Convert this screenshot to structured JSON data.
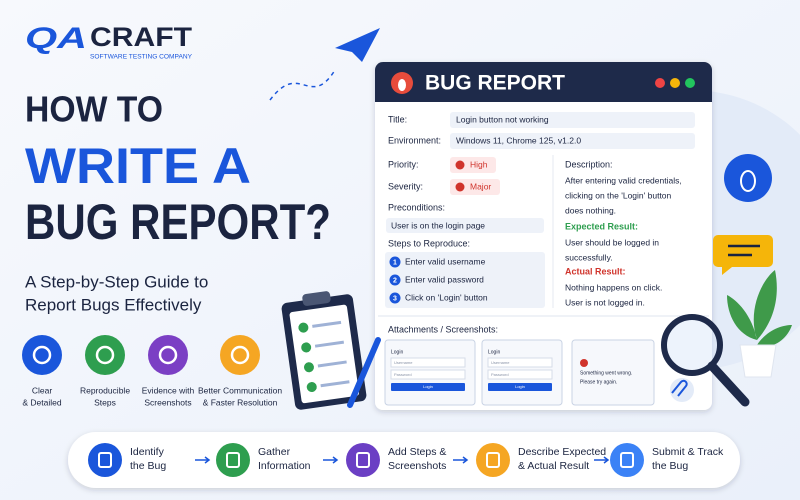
{
  "logo": {
    "mark": "QA",
    "name": "CRAFT",
    "tagline": "SOFTWARE TESTING COMPANY"
  },
  "headline": {
    "lines": [
      "HOW TO",
      "WRITE A",
      "BUG REPORT?"
    ]
  },
  "subtitle": {
    "lines": [
      "A Step-by-Step Guide to",
      "Report Bugs Effectively"
    ]
  },
  "features": [
    {
      "lines": [
        "Clear",
        "& Detailed"
      ]
    },
    {
      "lines": [
        "Reproducible",
        "Steps"
      ]
    },
    {
      "lines": [
        "Evidence with",
        "Screenshots"
      ]
    },
    {
      "lines": [
        "Better Communication",
        "& Faster Resolution"
      ]
    }
  ],
  "bug_report": {
    "title": "BUG REPORT",
    "fields": [
      {
        "label": "Title:",
        "value": "Login button not working"
      },
      {
        "label": "Environment:",
        "value": "Windows 11, Chrome 125, v1.2.0"
      }
    ],
    "priority": {
      "label": "Priority:",
      "value": "High"
    },
    "severity": {
      "label": "Severity:",
      "value": "Major"
    },
    "preconditions": {
      "label": "Preconditions:",
      "value": "User is on the login page"
    },
    "steps": {
      "label": "Steps to Reproduce:",
      "items": [
        {
          "number": 1,
          "text": "Enter valid username"
        },
        {
          "number": 2,
          "text": "Enter valid password"
        },
        {
          "number": 3,
          "text": "Click on 'Login' button"
        }
      ]
    },
    "description": {
      "label": "Description:",
      "lines": [
        "After entering valid credentials,",
        "clicking on the 'Login' button",
        "does nothing."
      ]
    },
    "expected": {
      "label": "Expected Result:",
      "lines": [
        "User should be logged in",
        "successfully."
      ]
    },
    "actual": {
      "label": "Actual Result:",
      "lines": [
        "Nothing happens on click.",
        "User is not logged in."
      ]
    },
    "attachments": {
      "label": "Attachments / Screenshots:",
      "thumbnails": [
        {
          "texts": [
            "Login",
            "Username",
            "Password",
            "Login"
          ]
        },
        {
          "texts": [
            "Login",
            "Username",
            "Password",
            "Login"
          ]
        },
        {
          "texts": [
            "Something went wrong.",
            "Please try again."
          ]
        }
      ]
    }
  },
  "process": [
    {
      "lines": [
        "Identify",
        "the Bug"
      ]
    },
    {
      "lines": [
        "Gather",
        "Information"
      ]
    },
    {
      "lines": [
        "Add Steps &",
        "Screenshots"
      ]
    },
    {
      "lines": [
        "Describe Expected",
        "& Actual Result"
      ]
    },
    {
      "lines": [
        "Submit & Track",
        "the Bug"
      ]
    }
  ]
}
